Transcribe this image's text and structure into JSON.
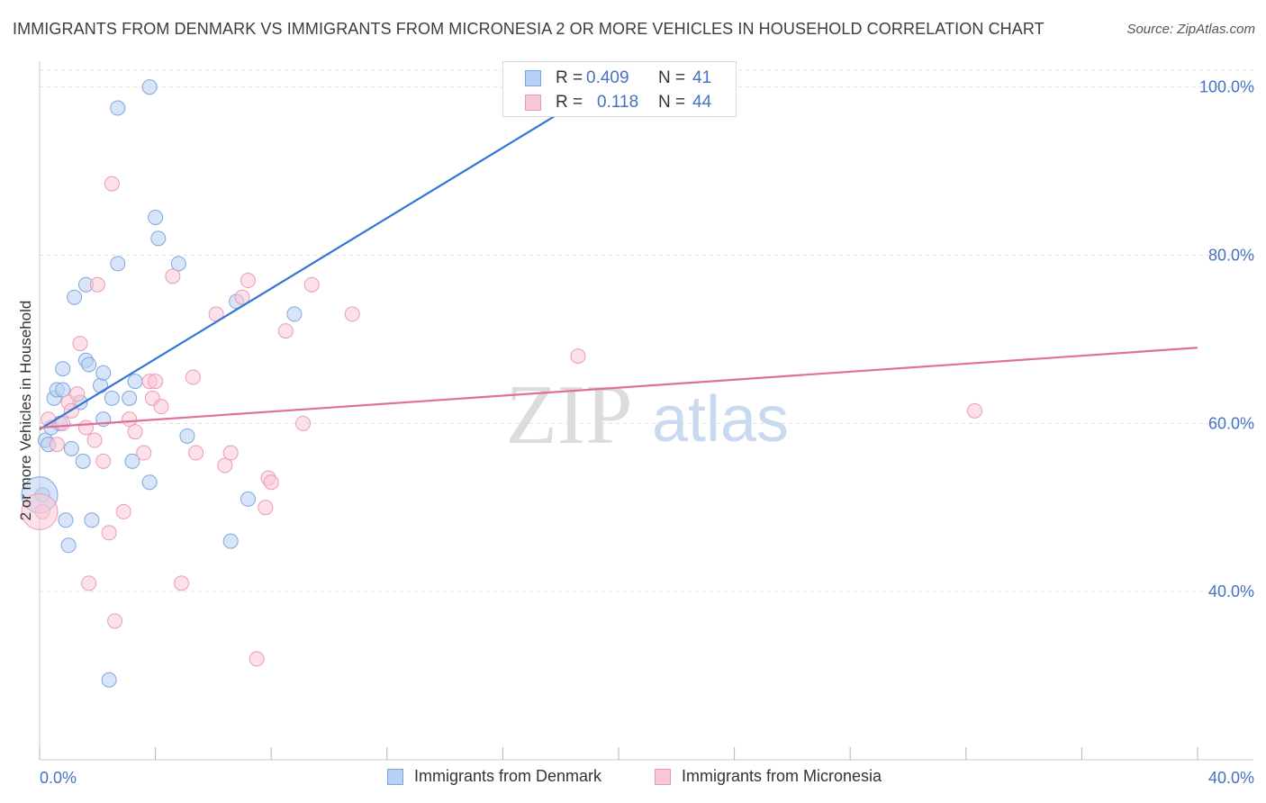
{
  "title": "IMMIGRANTS FROM DENMARK VS IMMIGRANTS FROM MICRONESIA 2 OR MORE VEHICLES IN HOUSEHOLD CORRELATION CHART",
  "source": "Source: ZipAtlas.com",
  "watermark": {
    "zip": "ZIP",
    "atlas": "atlas"
  },
  "colors": {
    "denmark_fill": "#b8d0f2",
    "denmark_stroke": "#7ea6de",
    "denmark_line": "#3478d4",
    "micronesia_fill": "#f9c8d6",
    "micronesia_stroke": "#ec9ab4",
    "micronesia_line": "#e0709a",
    "axis_text": "#4472c4",
    "grid": "#e0e0e0"
  },
  "stats": [
    {
      "r_label": "R =",
      "r_value": "0.409",
      "n_label": "N =",
      "n_value": "41"
    },
    {
      "r_label": "R =",
      "r_value": "0.118",
      "n_label": "N =",
      "n_value": "44"
    }
  ],
  "legend": [
    "Immigrants from Denmark",
    "Immigrants from Micronesia"
  ],
  "chart_data": {
    "type": "scatter",
    "title": "IMMIGRANTS FROM DENMARK VS IMMIGRANTS FROM MICRONESIA 2 OR MORE VEHICLES IN HOUSEHOLD CORRELATION CHART",
    "xlabel": "",
    "ylabel": "2 or more Vehicles in Household",
    "xlim": [
      0,
      40
    ],
    "ylim": [
      20,
      102
    ],
    "x_tick_labels": [
      "0.0%",
      "40.0%"
    ],
    "y_ticks": [
      40,
      60,
      80,
      100
    ],
    "y_tick_labels": [
      "40.0%",
      "60.0%",
      "80.0%",
      "100.0%"
    ],
    "grid": true,
    "legend_position": "bottom",
    "series": [
      {
        "name": "Immigrants from Denmark",
        "points": [
          [
            0.1,
            51.5
          ],
          [
            0.2,
            58.0
          ],
          [
            0.3,
            57.5
          ],
          [
            0.4,
            59.5
          ],
          [
            0.5,
            63.0
          ],
          [
            0.6,
            64.0
          ],
          [
            0.7,
            60.0
          ],
          [
            0.8,
            64.0
          ],
          [
            0.8,
            66.5
          ],
          [
            0.9,
            48.5
          ],
          [
            1.0,
            45.5
          ],
          [
            1.1,
            57.0
          ],
          [
            1.2,
            75.0
          ],
          [
            1.4,
            62.5
          ],
          [
            1.5,
            55.5
          ],
          [
            1.6,
            76.5
          ],
          [
            1.6,
            67.5
          ],
          [
            1.7,
            67.0
          ],
          [
            1.8,
            48.5
          ],
          [
            2.1,
            64.5
          ],
          [
            2.2,
            60.5
          ],
          [
            2.2,
            66.0
          ],
          [
            2.4,
            29.5
          ],
          [
            2.5,
            63.0
          ],
          [
            2.7,
            97.5
          ],
          [
            2.7,
            79.0
          ],
          [
            3.1,
            63.0
          ],
          [
            3.2,
            55.5
          ],
          [
            3.3,
            65.0
          ],
          [
            3.8,
            100.0
          ],
          [
            3.8,
            53.0
          ],
          [
            4.0,
            84.5
          ],
          [
            4.1,
            82.0
          ],
          [
            4.8,
            79.0
          ],
          [
            5.1,
            58.5
          ],
          [
            6.6,
            46.0
          ],
          [
            6.8,
            74.5
          ],
          [
            7.2,
            51.0
          ],
          [
            8.8,
            73.0
          ],
          [
            18.7,
            100.0
          ],
          [
            0.0,
            51.5
          ]
        ],
        "trend": [
          [
            0.0,
            59.3
          ],
          [
            20.4,
            102.0
          ]
        ]
      },
      {
        "name": "Immigrants from Micronesia",
        "points": [
          [
            0.1,
            49.5
          ],
          [
            0.3,
            60.5
          ],
          [
            0.6,
            57.5
          ],
          [
            0.8,
            60.0
          ],
          [
            1.0,
            62.5
          ],
          [
            1.1,
            61.5
          ],
          [
            1.3,
            63.5
          ],
          [
            1.4,
            69.5
          ],
          [
            1.6,
            59.5
          ],
          [
            1.7,
            41.0
          ],
          [
            1.9,
            58.0
          ],
          [
            2.0,
            76.5
          ],
          [
            2.2,
            55.5
          ],
          [
            2.4,
            47.0
          ],
          [
            2.5,
            88.5
          ],
          [
            2.6,
            36.5
          ],
          [
            2.9,
            49.5
          ],
          [
            3.1,
            60.5
          ],
          [
            3.3,
            59.0
          ],
          [
            3.6,
            56.5
          ],
          [
            3.8,
            65.0
          ],
          [
            3.9,
            63.0
          ],
          [
            4.0,
            65.0
          ],
          [
            4.2,
            62.0
          ],
          [
            4.6,
            77.5
          ],
          [
            4.9,
            41.0
          ],
          [
            5.3,
            65.5
          ],
          [
            5.4,
            56.5
          ],
          [
            6.1,
            73.0
          ],
          [
            6.4,
            55.0
          ],
          [
            6.6,
            56.5
          ],
          [
            7.0,
            75.0
          ],
          [
            7.2,
            77.0
          ],
          [
            7.5,
            32.0
          ],
          [
            7.8,
            50.0
          ],
          [
            7.9,
            53.5
          ],
          [
            8.0,
            53.0
          ],
          [
            8.5,
            71.0
          ],
          [
            9.1,
            60.0
          ],
          [
            9.4,
            76.5
          ],
          [
            10.8,
            73.0
          ],
          [
            18.6,
            68.0
          ],
          [
            32.3,
            61.5
          ],
          [
            0.0,
            49.5
          ]
        ],
        "trend": [
          [
            0.0,
            59.5
          ],
          [
            40.0,
            69.0
          ]
        ]
      }
    ]
  }
}
